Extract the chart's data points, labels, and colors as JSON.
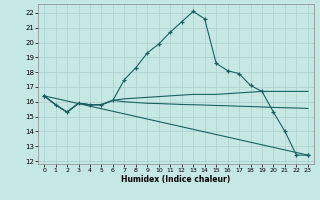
{
  "xlabel": "Humidex (Indice chaleur)",
  "background_color": "#c5e8e5",
  "grid_color": "#aacfcc",
  "line_color": "#1a6060",
  "xlim": [
    -0.5,
    23.5
  ],
  "ylim": [
    11.8,
    22.6
  ],
  "yticks": [
    12,
    13,
    14,
    15,
    16,
    17,
    18,
    19,
    20,
    21,
    22
  ],
  "xticks": [
    0,
    1,
    2,
    3,
    4,
    5,
    6,
    7,
    8,
    9,
    10,
    11,
    12,
    13,
    14,
    15,
    16,
    17,
    18,
    19,
    20,
    21,
    22,
    23
  ],
  "curve1_x": [
    0,
    1,
    2,
    3,
    4,
    5,
    6,
    7,
    8,
    9,
    10,
    11,
    12,
    13,
    14,
    15,
    16,
    17,
    18,
    19,
    20,
    21,
    22,
    23
  ],
  "curve1_y": [
    16.4,
    15.8,
    15.3,
    15.9,
    15.8,
    15.8,
    16.1,
    17.5,
    18.3,
    19.3,
    19.9,
    20.7,
    21.4,
    22.1,
    21.6,
    18.6,
    18.1,
    17.9,
    17.1,
    16.7,
    15.3,
    14.0,
    12.4,
    12.4
  ],
  "curve2_x": [
    0,
    1,
    2,
    3,
    4,
    5,
    6,
    7,
    8,
    9,
    10,
    11,
    12,
    13,
    14,
    15,
    16,
    17,
    18,
    19,
    20,
    21,
    22,
    23
  ],
  "curve2_y": [
    16.4,
    15.8,
    15.3,
    15.9,
    15.8,
    15.8,
    16.1,
    16.2,
    16.25,
    16.3,
    16.35,
    16.4,
    16.45,
    16.5,
    16.5,
    16.5,
    16.55,
    16.6,
    16.65,
    16.7,
    16.7,
    16.7,
    16.7,
    16.7
  ],
  "curve3_x": [
    0,
    1,
    2,
    3,
    4,
    5,
    6,
    7,
    8,
    9,
    10,
    11,
    12,
    13,
    14,
    15,
    16,
    17,
    18,
    19,
    20,
    21,
    22,
    23
  ],
  "curve3_y": [
    16.4,
    15.8,
    15.3,
    15.9,
    15.8,
    15.8,
    16.1,
    16.0,
    15.95,
    15.9,
    15.88,
    15.85,
    15.82,
    15.8,
    15.78,
    15.75,
    15.73,
    15.7,
    15.68,
    15.65,
    15.62,
    15.6,
    15.58,
    15.55
  ],
  "curve4_x": [
    0,
    23
  ],
  "curve4_y": [
    16.4,
    12.4
  ]
}
